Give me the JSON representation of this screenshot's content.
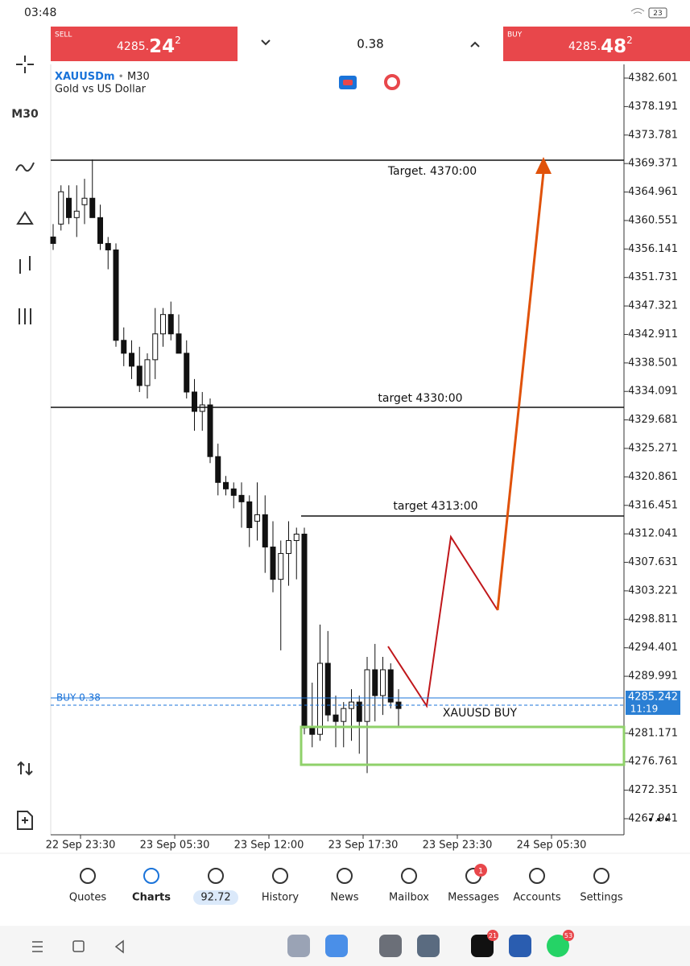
{
  "status_bar": {
    "time": "03:48",
    "battery": "23"
  },
  "trade_panel": {
    "sell_label": "SELL",
    "sell_price": [
      "4285.",
      "24",
      "2"
    ],
    "volume": "0.38",
    "buy_label": "BUY",
    "buy_price": [
      "4285.",
      "48",
      "2"
    ]
  },
  "sidebar": {
    "timeframe": "M30"
  },
  "chart": {
    "symbol": "XAUUSDm",
    "separator": "•",
    "timeframe": "M30",
    "description": "Gold vs US Dollar",
    "annotations": [
      "Target.  4370:00",
      "target 4330:00",
      "target 4313:00",
      "XAUUSD BUY"
    ],
    "position_label": "BUY 0.38",
    "current_price": "4285.242",
    "countdown": "11:19",
    "time_labels": [
      "22 Sep 23:30",
      "23 Sep 05:30",
      "23 Sep 12:00",
      "23 Sep 17:30",
      "23 Sep 23:30",
      "24 Sep 05:30"
    ]
  },
  "chart_data": {
    "type": "candlestick",
    "ylim": [
      4265.45,
      4384.72
    ],
    "yticks": [
      4382.601,
      4378.191,
      4373.781,
      4369.371,
      4364.961,
      4360.551,
      4356.141,
      4351.731,
      4347.321,
      4342.911,
      4338.501,
      4334.091,
      4329.681,
      4325.271,
      4320.861,
      4316.451,
      4312.041,
      4307.631,
      4303.221,
      4298.811,
      4294.401,
      4289.991,
      4281.171,
      4276.761,
      4272.351,
      4267.941
    ],
    "candles": [
      [
        4358,
        4360,
        4356,
        4357
      ],
      [
        4360,
        4366,
        4359,
        4365
      ],
      [
        4364,
        4366,
        4360,
        4361
      ],
      [
        4361,
        4366,
        4358,
        4362
      ],
      [
        4363,
        4367,
        4360,
        4364
      ],
      [
        4364,
        4370,
        4361,
        4361
      ],
      [
        4361,
        4363,
        4356,
        4357
      ],
      [
        4357,
        4358,
        4353,
        4356
      ],
      [
        4356,
        4357,
        4341,
        4342
      ],
      [
        4342,
        4344,
        4338,
        4340
      ],
      [
        4340,
        4342,
        4336,
        4338
      ],
      [
        4338,
        4341,
        4334,
        4335
      ],
      [
        4335,
        4340,
        4333,
        4339
      ],
      [
        4339,
        4347,
        4336,
        4343
      ],
      [
        4343,
        4347,
        4341,
        4346
      ],
      [
        4346,
        4348,
        4342,
        4343
      ],
      [
        4343,
        4346,
        4340,
        4340
      ],
      [
        4340,
        4342,
        4333,
        4334
      ],
      [
        4334,
        4336,
        4328,
        4331
      ],
      [
        4331,
        4334,
        4328,
        4332
      ],
      [
        4332,
        4333,
        4323,
        4324
      ],
      [
        4324,
        4326,
        4318,
        4320
      ],
      [
        4320,
        4321,
        4318,
        4319
      ],
      [
        4319,
        4320,
        4316,
        4318
      ],
      [
        4318,
        4320,
        4313,
        4317
      ],
      [
        4317,
        4318,
        4310,
        4313
      ],
      [
        4314,
        4320,
        4311,
        4315
      ],
      [
        4315,
        4318,
        4306,
        4310
      ],
      [
        4310,
        4314,
        4303,
        4305
      ],
      [
        4305,
        4311,
        4294,
        4309
      ],
      [
        4309,
        4314,
        4304,
        4311
      ],
      [
        4311,
        4313,
        4305,
        4312
      ],
      [
        4312,
        4313,
        4281,
        4282
      ],
      [
        4282,
        4289,
        4279,
        4281
      ],
      [
        4281,
        4298,
        4280,
        4292
      ],
      [
        4292,
        4297,
        4283,
        4284
      ],
      [
        4284,
        4287,
        4279,
        4283
      ],
      [
        4283,
        4286,
        4279,
        4285
      ],
      [
        4285,
        4288,
        4280,
        4286
      ],
      [
        4286,
        4287,
        4278,
        4283
      ],
      [
        4283,
        4293,
        4275,
        4291
      ],
      [
        4291,
        4295,
        4283,
        4287
      ],
      [
        4287,
        4293,
        4284,
        4291
      ],
      [
        4291,
        4292,
        4285,
        4286
      ],
      [
        4286,
        4288,
        4282,
        4285
      ]
    ]
  },
  "bottom_nav": {
    "items": [
      "Quotes",
      "Charts",
      "92.72",
      "History",
      "News",
      "Mailbox",
      "Messages",
      "Accounts",
      "Settings"
    ],
    "badges": [
      "1"
    ]
  },
  "system_bar": {
    "badges": [
      "21",
      "53"
    ]
  }
}
